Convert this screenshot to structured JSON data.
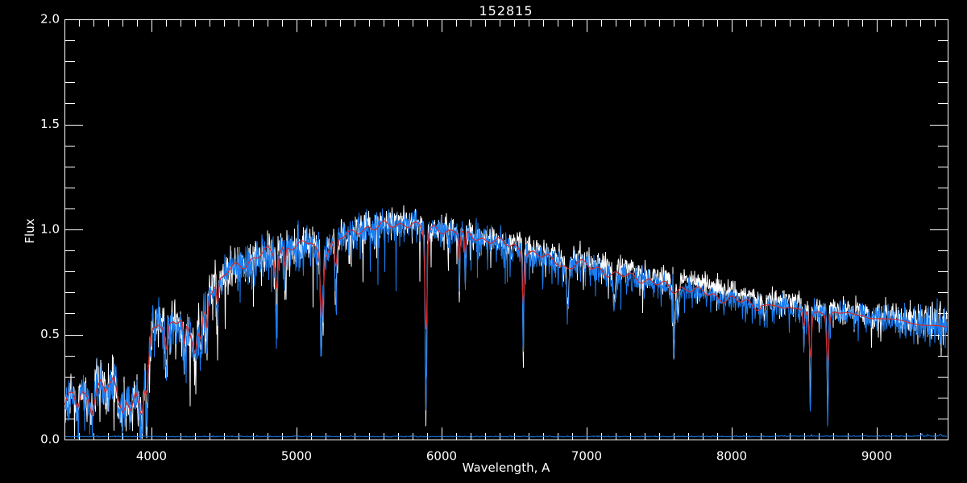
{
  "chart_data": {
    "type": "line",
    "title": "152815",
    "xlabel": "Wavelength, A",
    "ylabel": "Flux",
    "xlim": [
      3400,
      9489
    ],
    "ylim": [
      0.0,
      2.0
    ],
    "grid": false,
    "background_color": "#000000",
    "axis_color": "#ffffff",
    "x_major_ticks": [
      4000,
      5000,
      6000,
      7000,
      8000,
      9000
    ],
    "x_tick_labels": [
      "4000",
      "5000",
      "6000",
      "7000",
      "8000",
      "9000"
    ],
    "x_minor_step": 100,
    "y_major_ticks": [
      0.0,
      0.5,
      1.0,
      1.5,
      2.0
    ],
    "y_tick_labels": [
      "0.0",
      "0.5",
      "1.0",
      "1.5",
      "2.0"
    ],
    "y_minor_step": 0.1,
    "legend": "none",
    "series": [
      {
        "name": "observed-spectrum-unsmoothed",
        "color": "#ffffff",
        "role": "noisy-white",
        "seed": 777
      },
      {
        "name": "observed-spectrum",
        "color": "#1b7ef2",
        "role": "noisy-blue",
        "seed": 1337
      },
      {
        "name": "template-fit",
        "color": "#d42a2a",
        "role": "smooth-template"
      },
      {
        "name": "error-spectrum",
        "color": "#1b7ef2",
        "role": "error",
        "level": 0.012,
        "seed": 99
      }
    ],
    "continuum_points": [
      [
        3400,
        0.15
      ],
      [
        3430,
        0.2
      ],
      [
        3460,
        0.22
      ],
      [
        3490,
        0.16
      ],
      [
        3520,
        0.23
      ],
      [
        3560,
        0.2
      ],
      [
        3590,
        0.13
      ],
      [
        3620,
        0.24
      ],
      [
        3650,
        0.27
      ],
      [
        3680,
        0.21
      ],
      [
        3710,
        0.27
      ],
      [
        3740,
        0.3
      ],
      [
        3770,
        0.18
      ],
      [
        3800,
        0.13
      ],
      [
        3830,
        0.2
      ],
      [
        3860,
        0.14
      ],
      [
        3890,
        0.22
      ],
      [
        3920,
        0.15
      ],
      [
        3950,
        0.25
      ],
      [
        3980,
        0.4
      ],
      [
        4000,
        0.5
      ],
      [
        4050,
        0.56
      ],
      [
        4100,
        0.53
      ],
      [
        4150,
        0.57
      ],
      [
        4200,
        0.56
      ],
      [
        4250,
        0.52
      ],
      [
        4300,
        0.45
      ],
      [
        4350,
        0.58
      ],
      [
        4400,
        0.7
      ],
      [
        4450,
        0.73
      ],
      [
        4500,
        0.78
      ],
      [
        4550,
        0.81
      ],
      [
        4600,
        0.84
      ],
      [
        4650,
        0.83
      ],
      [
        4700,
        0.86
      ],
      [
        4750,
        0.88
      ],
      [
        4800,
        0.9
      ],
      [
        4861,
        0.87
      ],
      [
        4900,
        0.91
      ],
      [
        4950,
        0.92
      ],
      [
        5000,
        0.92
      ],
      [
        5050,
        0.93
      ],
      [
        5100,
        0.94
      ],
      [
        5175,
        0.86
      ],
      [
        5250,
        0.94
      ],
      [
        5300,
        0.96
      ],
      [
        5350,
        0.97
      ],
      [
        5400,
        0.99
      ],
      [
        5450,
        1.0
      ],
      [
        5500,
        1.01
      ],
      [
        5550,
        1.01
      ],
      [
        5600,
        1.02
      ],
      [
        5650,
        1.02
      ],
      [
        5700,
        1.02
      ],
      [
        5750,
        1.03
      ],
      [
        5800,
        1.03
      ],
      [
        5850,
        1.01
      ],
      [
        5890,
        0.97
      ],
      [
        5950,
        1.01
      ],
      [
        6000,
        1.0
      ],
      [
        6050,
        0.99
      ],
      [
        6100,
        0.99
      ],
      [
        6150,
        0.98
      ],
      [
        6200,
        0.97
      ],
      [
        6250,
        0.96
      ],
      [
        6300,
        0.95
      ],
      [
        6350,
        0.95
      ],
      [
        6400,
        0.94
      ],
      [
        6450,
        0.93
      ],
      [
        6500,
        0.92
      ],
      [
        6550,
        0.9
      ],
      [
        6600,
        0.89
      ],
      [
        6650,
        0.88
      ],
      [
        6700,
        0.87
      ],
      [
        6750,
        0.86
      ],
      [
        6800,
        0.85
      ],
      [
        6870,
        0.81
      ],
      [
        6930,
        0.84
      ],
      [
        7000,
        0.83
      ],
      [
        7050,
        0.82
      ],
      [
        7100,
        0.81
      ],
      [
        7150,
        0.79
      ],
      [
        7200,
        0.78
      ],
      [
        7250,
        0.78
      ],
      [
        7300,
        0.78
      ],
      [
        7350,
        0.77
      ],
      [
        7400,
        0.76
      ],
      [
        7450,
        0.75
      ],
      [
        7500,
        0.74
      ],
      [
        7550,
        0.73
      ],
      [
        7600,
        0.71
      ],
      [
        7650,
        0.72
      ],
      [
        7700,
        0.72
      ],
      [
        7750,
        0.71
      ],
      [
        7800,
        0.7
      ],
      [
        7850,
        0.69
      ],
      [
        7900,
        0.68
      ],
      [
        7950,
        0.67
      ],
      [
        8000,
        0.67
      ],
      [
        8050,
        0.66
      ],
      [
        8100,
        0.65
      ],
      [
        8150,
        0.64
      ],
      [
        8200,
        0.63
      ],
      [
        8250,
        0.64
      ],
      [
        8300,
        0.64
      ],
      [
        8350,
        0.63
      ],
      [
        8400,
        0.63
      ],
      [
        8450,
        0.62
      ],
      [
        8500,
        0.61
      ],
      [
        8550,
        0.6
      ],
      [
        8600,
        0.61
      ],
      [
        8660,
        0.59
      ],
      [
        8700,
        0.61
      ],
      [
        8750,
        0.6
      ],
      [
        8800,
        0.6
      ],
      [
        8850,
        0.59
      ],
      [
        8900,
        0.59
      ],
      [
        8950,
        0.58
      ],
      [
        9000,
        0.58
      ],
      [
        9100,
        0.57
      ],
      [
        9200,
        0.56
      ],
      [
        9300,
        0.55
      ],
      [
        9400,
        0.54
      ],
      [
        9489,
        0.53
      ]
    ],
    "absorption_lines": [
      [
        3934,
        0.04,
        10,
        1
      ],
      [
        3968,
        0.07,
        10,
        1
      ],
      [
        4101,
        0.3,
        10,
        1
      ],
      [
        4227,
        0.3,
        7,
        1
      ],
      [
        4300,
        0.38,
        14,
        1
      ],
      [
        4340,
        0.38,
        9,
        1
      ],
      [
        4383,
        0.4,
        7,
        1
      ],
      [
        4455,
        0.5,
        7,
        1
      ],
      [
        4861,
        0.55,
        9,
        1
      ],
      [
        4920,
        0.7,
        6,
        1
      ],
      [
        5167,
        0.5,
        6,
        1
      ],
      [
        5173,
        0.45,
        6,
        1
      ],
      [
        5184,
        0.52,
        6,
        1
      ],
      [
        5270,
        0.65,
        10,
        1
      ],
      [
        5890,
        0.28,
        8,
        1
      ],
      [
        5896,
        0.35,
        6,
        1
      ],
      [
        6122,
        0.7,
        6,
        1
      ],
      [
        6163,
        0.72,
        6,
        1
      ],
      [
        6563,
        0.37,
        7,
        1
      ],
      [
        6870,
        0.6,
        14,
        0
      ],
      [
        7190,
        0.62,
        18,
        0
      ],
      [
        7600,
        0.4,
        16,
        0
      ],
      [
        7630,
        0.55,
        12,
        0
      ],
      [
        8227,
        0.55,
        10,
        0
      ],
      [
        8498,
        0.44,
        8,
        1
      ],
      [
        8542,
        0.13,
        9,
        1
      ],
      [
        8662,
        0.1,
        9,
        1
      ]
    ],
    "artifact_spikes": [
      [
        7594,
        0.9
      ],
      [
        9417,
        0.68
      ]
    ],
    "noise_sigma_points": [
      [
        3400,
        0.05
      ],
      [
        3800,
        0.055
      ],
      [
        4200,
        0.05
      ],
      [
        4800,
        0.045
      ],
      [
        5400,
        0.04
      ],
      [
        6000,
        0.034
      ],
      [
        6600,
        0.032
      ],
      [
        7200,
        0.028
      ],
      [
        8000,
        0.026
      ],
      [
        8600,
        0.028
      ],
      [
        9100,
        0.035
      ],
      [
        9489,
        0.045
      ]
    ],
    "downspike": {
      "probability": 0.13,
      "depth_points": [
        [
          3400,
          0.28
        ],
        [
          4200,
          0.38
        ],
        [
          5000,
          0.34
        ],
        [
          5800,
          0.32
        ],
        [
          6400,
          0.3
        ],
        [
          7000,
          0.22
        ],
        [
          7800,
          0.16
        ],
        [
          8400,
          0.14
        ],
        [
          9000,
          0.17
        ],
        [
          9489,
          0.2
        ]
      ]
    },
    "white_offset_points": [
      [
        3400,
        0.004
      ],
      [
        5000,
        0.004
      ],
      [
        6200,
        0.006
      ],
      [
        6600,
        0.02
      ],
      [
        7000,
        0.03
      ],
      [
        7400,
        0.04
      ],
      [
        7900,
        0.045
      ],
      [
        8300,
        0.035
      ],
      [
        8600,
        0.02
      ],
      [
        8900,
        0.018
      ],
      [
        9200,
        0.02
      ],
      [
        9489,
        0.022
      ]
    ],
    "error_spikes": [
      [
        7600,
        0.008,
        4
      ],
      [
        8550,
        0.006,
        4
      ],
      [
        8920,
        0.005,
        4
      ],
      [
        9310,
        0.012,
        4
      ],
      [
        9355,
        0.01,
        4
      ],
      [
        9440,
        0.014,
        5
      ]
    ]
  }
}
